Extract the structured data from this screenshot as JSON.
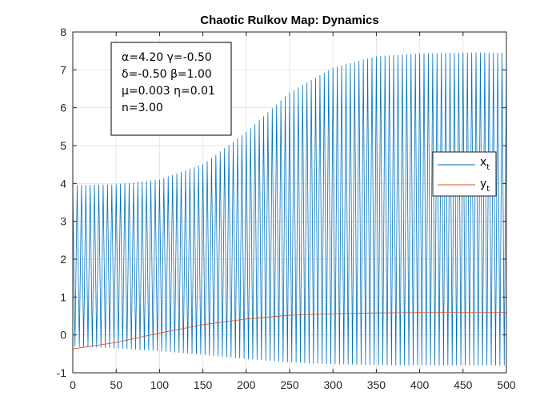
{
  "chart_data": {
    "type": "line",
    "title": "Chaotic Rulkov Map: Dynamics",
    "xlabel": "",
    "ylabel": "",
    "xlim": [
      0,
      500
    ],
    "ylim": [
      -1,
      8
    ],
    "x_ticks": [
      "0",
      "50",
      "100",
      "150",
      "200",
      "250",
      "300",
      "350",
      "400",
      "450",
      "500"
    ],
    "y_ticks": [
      "-1",
      "0",
      "1",
      "2",
      "3",
      "4",
      "5",
      "6",
      "7",
      "8"
    ],
    "grid": true,
    "legend_position": "right",
    "annotation_lines": [
      "α=4.20 γ=-0.50",
      "δ=-0.50 β=1.00",
      "μ=0.003 η=0.01",
      "n=3.00"
    ],
    "series": [
      {
        "name": "x_t",
        "legend_main": "x",
        "legend_sub": "t",
        "color": "#0072BD",
        "pattern": "alternating",
        "period": 5,
        "envelope_upper": [
          [
            0,
            3.95
          ],
          [
            50,
            3.97
          ],
          [
            100,
            4.1
          ],
          [
            150,
            4.5
          ],
          [
            200,
            5.35
          ],
          [
            250,
            6.4
          ],
          [
            300,
            7.05
          ],
          [
            350,
            7.35
          ],
          [
            400,
            7.43
          ],
          [
            450,
            7.45
          ],
          [
            500,
            7.45
          ]
        ],
        "envelope_lower": [
          [
            0,
            -0.3
          ],
          [
            50,
            -0.35
          ],
          [
            100,
            -0.42
          ],
          [
            150,
            -0.52
          ],
          [
            200,
            -0.63
          ],
          [
            250,
            -0.72
          ],
          [
            300,
            -0.77
          ],
          [
            350,
            -0.79
          ],
          [
            400,
            -0.8
          ],
          [
            450,
            -0.8
          ],
          [
            500,
            -0.8
          ]
        ]
      },
      {
        "name": "y_t",
        "legend_main": "y",
        "legend_sub": "t",
        "color": "#D95319",
        "points": [
          [
            0,
            -0.37
          ],
          [
            50,
            -0.2
          ],
          [
            100,
            0.05
          ],
          [
            150,
            0.27
          ],
          [
            200,
            0.42
          ],
          [
            250,
            0.52
          ],
          [
            300,
            0.56
          ],
          [
            350,
            0.58
          ],
          [
            400,
            0.59
          ],
          [
            450,
            0.59
          ],
          [
            500,
            0.59
          ]
        ]
      }
    ]
  }
}
